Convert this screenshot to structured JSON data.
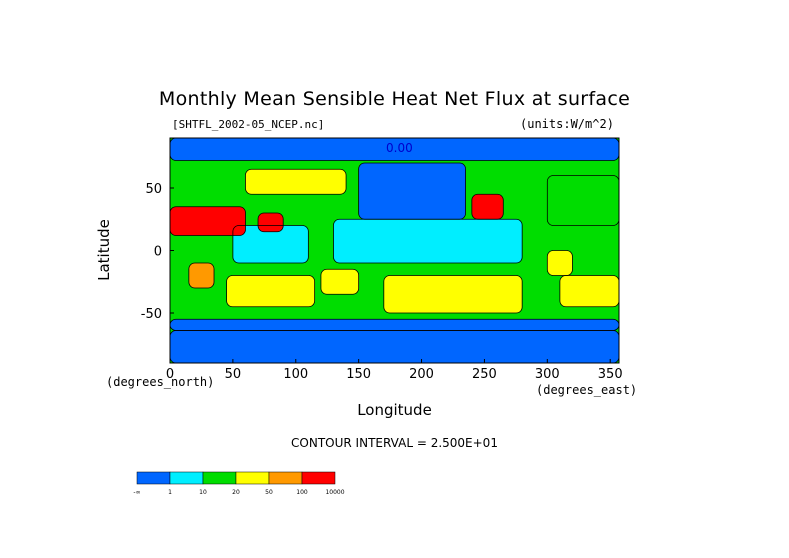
{
  "chart_data": {
    "type": "heatmap",
    "title": "Monthly Mean Sensible Heat Net Flux at surface",
    "file_label": "[SHTFL_2002-05_NCEP.nc]",
    "units_label": "(units:W/m^2)",
    "xlabel": "Longitude",
    "ylabel": "Latitude",
    "x_units": "(degrees_east)",
    "y_units": "(degrees_north)",
    "xlim": [
      0,
      357
    ],
    "ylim": [
      -90,
      90
    ],
    "x_ticks": [
      0,
      50,
      100,
      150,
      200,
      250,
      300,
      350
    ],
    "y_ticks": [
      -50,
      0,
      50
    ],
    "contour_interval_label": "CONTOUR INTERVAL = 2.500E+01",
    "contour_label": "0.00",
    "grid": false,
    "legend": {
      "placement": "bottom-left",
      "bounds_labels": [
        "-∞",
        "1",
        "10",
        "20",
        "50",
        "100",
        "10000"
      ],
      "colors": [
        "#0066ff",
        "#00eeff",
        "#00dd00",
        "#ffff00",
        "#ff9900",
        "#ff0000"
      ]
    },
    "regions": [
      {
        "name": "arctic-ocean",
        "lon": [
          0,
          357
        ],
        "lat": [
          72,
          90
        ],
        "class": 0
      },
      {
        "name": "southern-ocean-belt",
        "lon": [
          0,
          357
        ],
        "lat": [
          -64,
          -55
        ],
        "class": 0
      },
      {
        "name": "antarctica",
        "lon": [
          0,
          357
        ],
        "lat": [
          -90,
          -64
        ],
        "class": 0
      },
      {
        "name": "north-pacific",
        "lon": [
          150,
          235
        ],
        "lat": [
          25,
          70
        ],
        "class": 0
      },
      {
        "name": "tropical-pacific",
        "lon": [
          130,
          280
        ],
        "lat": [
          -10,
          25
        ],
        "class": 1
      },
      {
        "name": "indian-ocean",
        "lon": [
          50,
          110
        ],
        "lat": [
          -10,
          20
        ],
        "class": 1
      },
      {
        "name": "south-indian-ocean",
        "lon": [
          45,
          115
        ],
        "lat": [
          -45,
          -20
        ],
        "class": 3
      },
      {
        "name": "south-pacific",
        "lon": [
          170,
          280
        ],
        "lat": [
          -50,
          -20
        ],
        "class": 3
      },
      {
        "name": "south-atlantic",
        "lon": [
          310,
          357
        ],
        "lat": [
          -45,
          -20
        ],
        "class": 3
      },
      {
        "name": "north-atlantic",
        "lon": [
          300,
          357
        ],
        "lat": [
          20,
          60
        ],
        "class": 2
      },
      {
        "name": "sahara-arabia",
        "lon": [
          0,
          60
        ],
        "lat": [
          12,
          35
        ],
        "class": 5
      },
      {
        "name": "india",
        "lon": [
          70,
          90
        ],
        "lat": [
          15,
          30
        ],
        "class": 5
      },
      {
        "name": "siberia",
        "lon": [
          60,
          140
        ],
        "lat": [
          45,
          65
        ],
        "class": 3
      },
      {
        "name": "southern-africa",
        "lon": [
          15,
          35
        ],
        "lat": [
          -30,
          -10
        ],
        "class": 4
      },
      {
        "name": "australia",
        "lon": [
          120,
          150
        ],
        "lat": [
          -35,
          -15
        ],
        "class": 3
      },
      {
        "name": "north-america-sw",
        "lon": [
          240,
          265
        ],
        "lat": [
          25,
          45
        ],
        "class": 5
      },
      {
        "name": "south-america-east",
        "lon": [
          300,
          320
        ],
        "lat": [
          -20,
          0
        ],
        "class": 3
      }
    ]
  }
}
